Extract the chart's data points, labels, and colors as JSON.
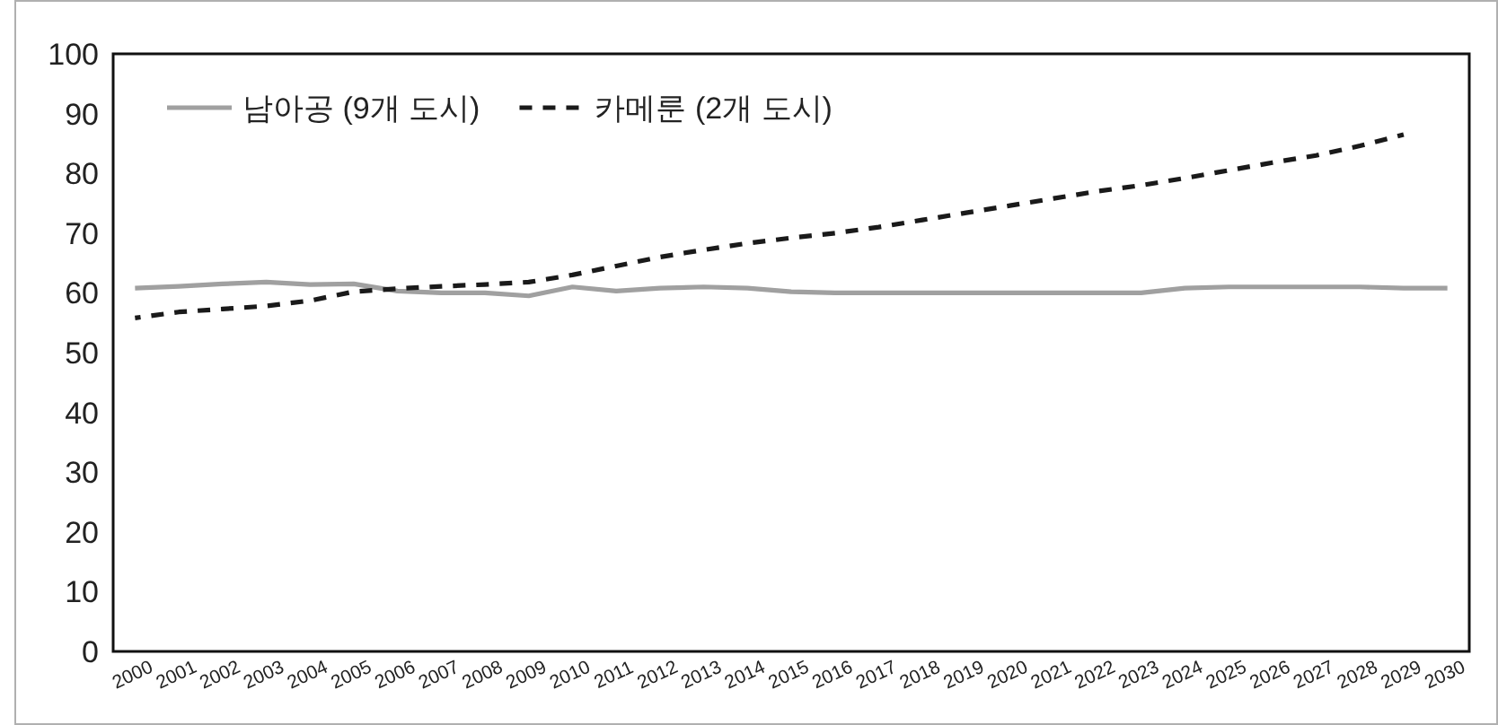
{
  "chart_data": {
    "type": "line",
    "categories": [
      "2000",
      "2001",
      "2002",
      "2003",
      "2004",
      "2005",
      "2006",
      "2007",
      "2008",
      "2009",
      "2010",
      "2011",
      "2012",
      "2013",
      "2014",
      "2015",
      "2016",
      "2017",
      "2018",
      "2019",
      "2020",
      "2021",
      "2022",
      "2023",
      "2024",
      "2025",
      "2026",
      "2027",
      "2028",
      "2029",
      "2030"
    ],
    "series": [
      {
        "name": "남아공 (9개 도시)",
        "color": "#a0a0a0",
        "line_style": "solid",
        "values": [
          60.8,
          61.1,
          61.5,
          61.8,
          61.4,
          61.5,
          60.3,
          60,
          60,
          59.5,
          61,
          60.3,
          60.8,
          61,
          60.8,
          60.2,
          60,
          60,
          60,
          60,
          60,
          60,
          60,
          60,
          60.8,
          61,
          61,
          61,
          61,
          60.8,
          60.8
        ]
      },
      {
        "name": "카메룬 (2개 도시)",
        "color": "#1a1a1a",
        "line_style": "dashed",
        "values": [
          55.8,
          56.8,
          57.3,
          57.8,
          58.7,
          60.2,
          60.7,
          61.1,
          61.4,
          61.8,
          63,
          64.5,
          66,
          67.2,
          68.3,
          69.2,
          70,
          71,
          72.2,
          73.4,
          74.6,
          75.8,
          77,
          78,
          79.2,
          80.5,
          81.8,
          83,
          84.6,
          86.5,
          null
        ]
      }
    ],
    "ylim": [
      0,
      100
    ],
    "yticks": [
      0,
      10,
      20,
      30,
      40,
      50,
      60,
      70,
      80,
      90,
      100
    ],
    "legend": "top left",
    "grid": false
  }
}
